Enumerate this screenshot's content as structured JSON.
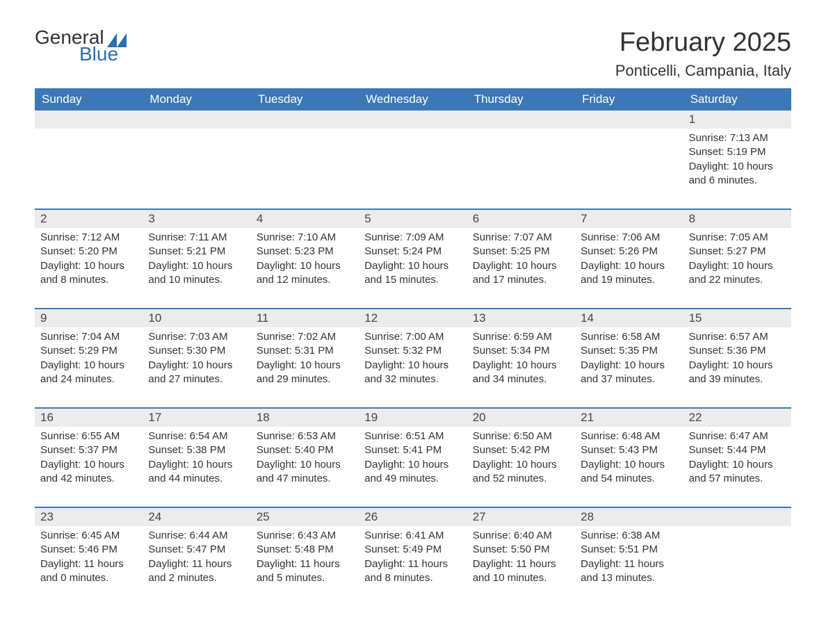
{
  "logo": {
    "text_general": "General",
    "text_blue": "Blue",
    "flag_color": "#2c6fb0"
  },
  "title": "February 2025",
  "location": "Ponticelli, Campania, Italy",
  "day_headers": [
    "Sunday",
    "Monday",
    "Tuesday",
    "Wednesday",
    "Thursday",
    "Friday",
    "Saturday"
  ],
  "colors": {
    "header_bg": "#3b78b5",
    "header_text": "#ffffff",
    "date_bg": "#ececec",
    "body_text": "#333333",
    "rule": "#3b78b5"
  },
  "typography": {
    "title_fontsize": 38,
    "location_fontsize": 22,
    "header_fontsize": 17,
    "date_fontsize": 17,
    "body_fontsize": 15
  },
  "weeks": [
    [
      null,
      null,
      null,
      null,
      null,
      null,
      {
        "d": "1",
        "sr": "Sunrise: 7:13 AM",
        "ss": "Sunset: 5:19 PM",
        "dl1": "Daylight: 10 hours",
        "dl2": "and 6 minutes."
      }
    ],
    [
      {
        "d": "2",
        "sr": "Sunrise: 7:12 AM",
        "ss": "Sunset: 5:20 PM",
        "dl1": "Daylight: 10 hours",
        "dl2": "and 8 minutes."
      },
      {
        "d": "3",
        "sr": "Sunrise: 7:11 AM",
        "ss": "Sunset: 5:21 PM",
        "dl1": "Daylight: 10 hours",
        "dl2": "and 10 minutes."
      },
      {
        "d": "4",
        "sr": "Sunrise: 7:10 AM",
        "ss": "Sunset: 5:23 PM",
        "dl1": "Daylight: 10 hours",
        "dl2": "and 12 minutes."
      },
      {
        "d": "5",
        "sr": "Sunrise: 7:09 AM",
        "ss": "Sunset: 5:24 PM",
        "dl1": "Daylight: 10 hours",
        "dl2": "and 15 minutes."
      },
      {
        "d": "6",
        "sr": "Sunrise: 7:07 AM",
        "ss": "Sunset: 5:25 PM",
        "dl1": "Daylight: 10 hours",
        "dl2": "and 17 minutes."
      },
      {
        "d": "7",
        "sr": "Sunrise: 7:06 AM",
        "ss": "Sunset: 5:26 PM",
        "dl1": "Daylight: 10 hours",
        "dl2": "and 19 minutes."
      },
      {
        "d": "8",
        "sr": "Sunrise: 7:05 AM",
        "ss": "Sunset: 5:27 PM",
        "dl1": "Daylight: 10 hours",
        "dl2": "and 22 minutes."
      }
    ],
    [
      {
        "d": "9",
        "sr": "Sunrise: 7:04 AM",
        "ss": "Sunset: 5:29 PM",
        "dl1": "Daylight: 10 hours",
        "dl2": "and 24 minutes."
      },
      {
        "d": "10",
        "sr": "Sunrise: 7:03 AM",
        "ss": "Sunset: 5:30 PM",
        "dl1": "Daylight: 10 hours",
        "dl2": "and 27 minutes."
      },
      {
        "d": "11",
        "sr": "Sunrise: 7:02 AM",
        "ss": "Sunset: 5:31 PM",
        "dl1": "Daylight: 10 hours",
        "dl2": "and 29 minutes."
      },
      {
        "d": "12",
        "sr": "Sunrise: 7:00 AM",
        "ss": "Sunset: 5:32 PM",
        "dl1": "Daylight: 10 hours",
        "dl2": "and 32 minutes."
      },
      {
        "d": "13",
        "sr": "Sunrise: 6:59 AM",
        "ss": "Sunset: 5:34 PM",
        "dl1": "Daylight: 10 hours",
        "dl2": "and 34 minutes."
      },
      {
        "d": "14",
        "sr": "Sunrise: 6:58 AM",
        "ss": "Sunset: 5:35 PM",
        "dl1": "Daylight: 10 hours",
        "dl2": "and 37 minutes."
      },
      {
        "d": "15",
        "sr": "Sunrise: 6:57 AM",
        "ss": "Sunset: 5:36 PM",
        "dl1": "Daylight: 10 hours",
        "dl2": "and 39 minutes."
      }
    ],
    [
      {
        "d": "16",
        "sr": "Sunrise: 6:55 AM",
        "ss": "Sunset: 5:37 PM",
        "dl1": "Daylight: 10 hours",
        "dl2": "and 42 minutes."
      },
      {
        "d": "17",
        "sr": "Sunrise: 6:54 AM",
        "ss": "Sunset: 5:38 PM",
        "dl1": "Daylight: 10 hours",
        "dl2": "and 44 minutes."
      },
      {
        "d": "18",
        "sr": "Sunrise: 6:53 AM",
        "ss": "Sunset: 5:40 PM",
        "dl1": "Daylight: 10 hours",
        "dl2": "and 47 minutes."
      },
      {
        "d": "19",
        "sr": "Sunrise: 6:51 AM",
        "ss": "Sunset: 5:41 PM",
        "dl1": "Daylight: 10 hours",
        "dl2": "and 49 minutes."
      },
      {
        "d": "20",
        "sr": "Sunrise: 6:50 AM",
        "ss": "Sunset: 5:42 PM",
        "dl1": "Daylight: 10 hours",
        "dl2": "and 52 minutes."
      },
      {
        "d": "21",
        "sr": "Sunrise: 6:48 AM",
        "ss": "Sunset: 5:43 PM",
        "dl1": "Daylight: 10 hours",
        "dl2": "and 54 minutes."
      },
      {
        "d": "22",
        "sr": "Sunrise: 6:47 AM",
        "ss": "Sunset: 5:44 PM",
        "dl1": "Daylight: 10 hours",
        "dl2": "and 57 minutes."
      }
    ],
    [
      {
        "d": "23",
        "sr": "Sunrise: 6:45 AM",
        "ss": "Sunset: 5:46 PM",
        "dl1": "Daylight: 11 hours",
        "dl2": "and 0 minutes."
      },
      {
        "d": "24",
        "sr": "Sunrise: 6:44 AM",
        "ss": "Sunset: 5:47 PM",
        "dl1": "Daylight: 11 hours",
        "dl2": "and 2 minutes."
      },
      {
        "d": "25",
        "sr": "Sunrise: 6:43 AM",
        "ss": "Sunset: 5:48 PM",
        "dl1": "Daylight: 11 hours",
        "dl2": "and 5 minutes."
      },
      {
        "d": "26",
        "sr": "Sunrise: 6:41 AM",
        "ss": "Sunset: 5:49 PM",
        "dl1": "Daylight: 11 hours",
        "dl2": "and 8 minutes."
      },
      {
        "d": "27",
        "sr": "Sunrise: 6:40 AM",
        "ss": "Sunset: 5:50 PM",
        "dl1": "Daylight: 11 hours",
        "dl2": "and 10 minutes."
      },
      {
        "d": "28",
        "sr": "Sunrise: 6:38 AM",
        "ss": "Sunset: 5:51 PM",
        "dl1": "Daylight: 11 hours",
        "dl2": "and 13 minutes."
      },
      null
    ]
  ]
}
